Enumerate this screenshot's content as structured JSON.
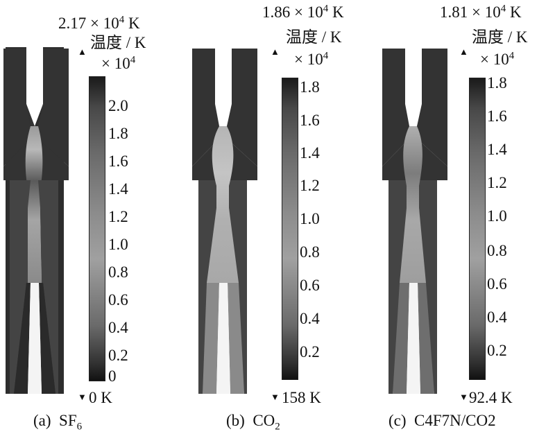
{
  "legend_title": "温度 / K",
  "scale_factor_base": "× 10",
  "scale_factor_exp": "4",
  "panels": [
    {
      "caption_letter": "(a)",
      "caption_gas": "SF",
      "caption_sub": "6",
      "max_value": "2.17 × 10",
      "max_exp": "4",
      "max_unit": "K",
      "min_label": "0 K",
      "ticks": [
        "2.0",
        "1.8",
        "1.6",
        "1.4",
        "1.2",
        "1.0",
        "0.8",
        "0.6",
        "0.4",
        "0.2",
        "0"
      ],
      "tick_values": [
        2.0,
        1.8,
        1.6,
        1.4,
        1.2,
        1.0,
        0.8,
        0.6,
        0.4,
        0.2,
        0.0
      ],
      "range": [
        0,
        2.17
      ]
    },
    {
      "caption_letter": "(b)",
      "caption_gas": "CO",
      "caption_sub": "2",
      "max_value": "1.86 × 10",
      "max_exp": "4",
      "max_unit": "K",
      "min_label": "158 K",
      "ticks": [
        "1.8",
        "1.6",
        "1.4",
        "1.2",
        "1.0",
        "0.8",
        "0.6",
        "0.4",
        "0.2"
      ],
      "tick_values": [
        1.8,
        1.6,
        1.4,
        1.2,
        1.0,
        0.8,
        0.6,
        0.4,
        0.2
      ],
      "range": [
        0.0158,
        1.86
      ]
    },
    {
      "caption_letter": "(c)",
      "caption_gas": "C4F7N/CO2",
      "caption_sub": "",
      "max_value": "1.81 × 10",
      "max_exp": "4",
      "max_unit": "K",
      "min_label": "92.4 K",
      "ticks": [
        "1.8",
        "1.6",
        "1.4",
        "1.2",
        "1.0",
        "0.8",
        "0.6",
        "0.4",
        "0.2"
      ],
      "tick_values": [
        1.8,
        1.6,
        1.4,
        1.2,
        1.0,
        0.8,
        0.6,
        0.4,
        0.2
      ],
      "range": [
        0.00924,
        1.81
      ]
    }
  ]
}
